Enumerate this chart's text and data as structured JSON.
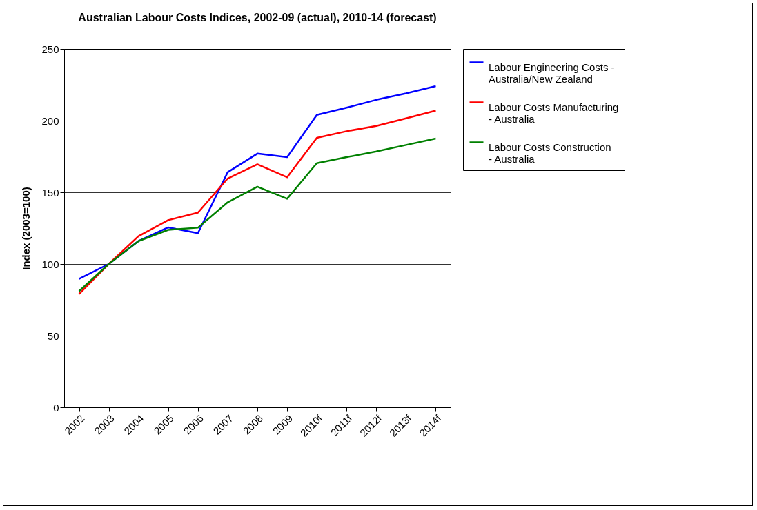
{
  "chart_data": {
    "type": "line",
    "title": "Australian Labour Costs Indices, 2002-09 (actual), 2010-14 (forecast)",
    "ylabel": "Index (2003=100)",
    "categories": [
      "2002",
      "2003",
      "2004",
      "2005",
      "2006",
      "2007",
      "2008",
      "2009",
      "2010f",
      "2011f",
      "2012f",
      "2013f",
      "2014f"
    ],
    "series": [
      {
        "name": "Labour Engineering Costs - Australia/New Zealand",
        "color": "#0000ff",
        "values": [
          89.6,
          100,
          116,
          125.5,
          121.5,
          164,
          177,
          174.5,
          204,
          209,
          214.5,
          219,
          224
        ]
      },
      {
        "name": "Labour Costs Manufacturing - Australia",
        "color": "#ff0000",
        "values": [
          79,
          100,
          119.4,
          130.6,
          135.8,
          159.6,
          169.5,
          160.5,
          188,
          192.6,
          196.3,
          201.6,
          207
        ]
      },
      {
        "name": "Labour Costs Construction - Australia",
        "color": "#008000",
        "values": [
          81,
          100,
          116,
          123.8,
          125.3,
          143,
          153.9,
          145.5,
          170.3,
          174.5,
          178.5,
          183,
          187.5
        ]
      }
    ],
    "ylim": [
      0,
      250
    ],
    "yticks": [
      0,
      50,
      100,
      150,
      200,
      250
    ],
    "grid": "y",
    "legend": "right",
    "marker": "none",
    "line_style": "solid"
  }
}
